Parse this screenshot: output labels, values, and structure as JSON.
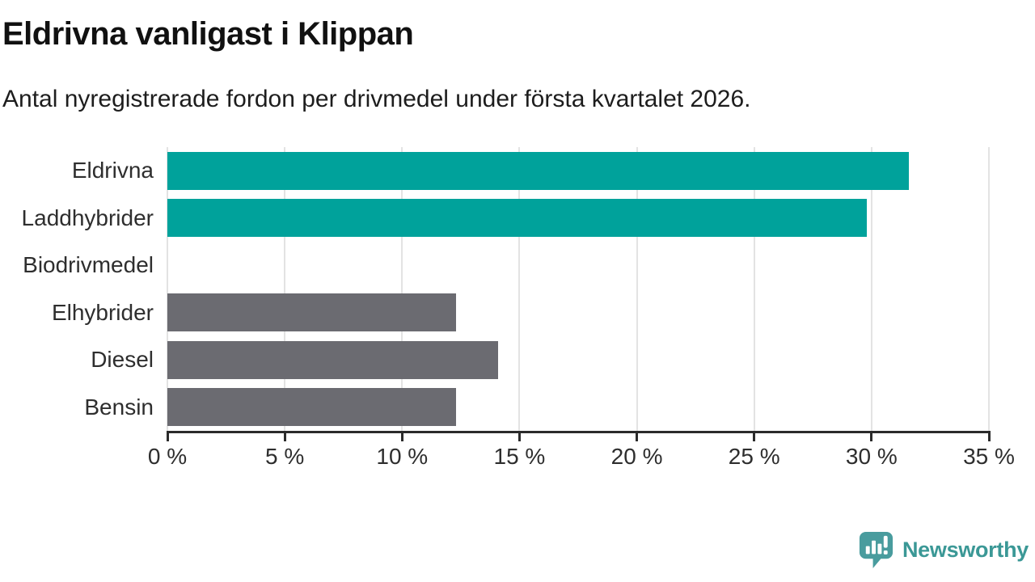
{
  "title": "Eldrivna vanligast i Klippan",
  "subtitle": "Antal nyregistrerade fordon per drivmedel under första kvartalet 2026.",
  "chart_data": {
    "type": "bar",
    "orientation": "horizontal",
    "title": "Eldrivna vanligast i Klippan",
    "subtitle": "Antal nyregistrerade fordon per drivmedel under första kvartalet 2026.",
    "categories": [
      "Eldrivna",
      "Laddhybrider",
      "Biodrivmedel",
      "Elhybrider",
      "Diesel",
      "Bensin"
    ],
    "values": [
      31.6,
      29.8,
      0,
      12.3,
      14.1,
      12.3
    ],
    "unit": "%",
    "xlim": [
      0,
      35
    ],
    "x_tick_values": [
      0,
      5,
      10,
      15,
      20,
      25,
      30,
      35
    ],
    "x_tick_labels": [
      "0 %",
      "5 %",
      "10 %",
      "15 %",
      "20 %",
      "25 %",
      "30 %",
      "35 %"
    ],
    "grid": true,
    "legend": false,
    "bar_colors": [
      "#00a29b",
      "#00a29b",
      "#00a29b",
      "#6b6b71",
      "#6b6b71",
      "#6b6b71"
    ]
  },
  "colors": {
    "highlight_teal": "#00a29b",
    "neutral_gray": "#6b6b71",
    "gridline": "#e3e3e3",
    "axis": "#2b2b2b",
    "brand_teal": "#3b9896"
  },
  "footer": {
    "brand": "Newsworthy",
    "logo_icon": "newsworthy-speech-bubble-chart-icon"
  }
}
